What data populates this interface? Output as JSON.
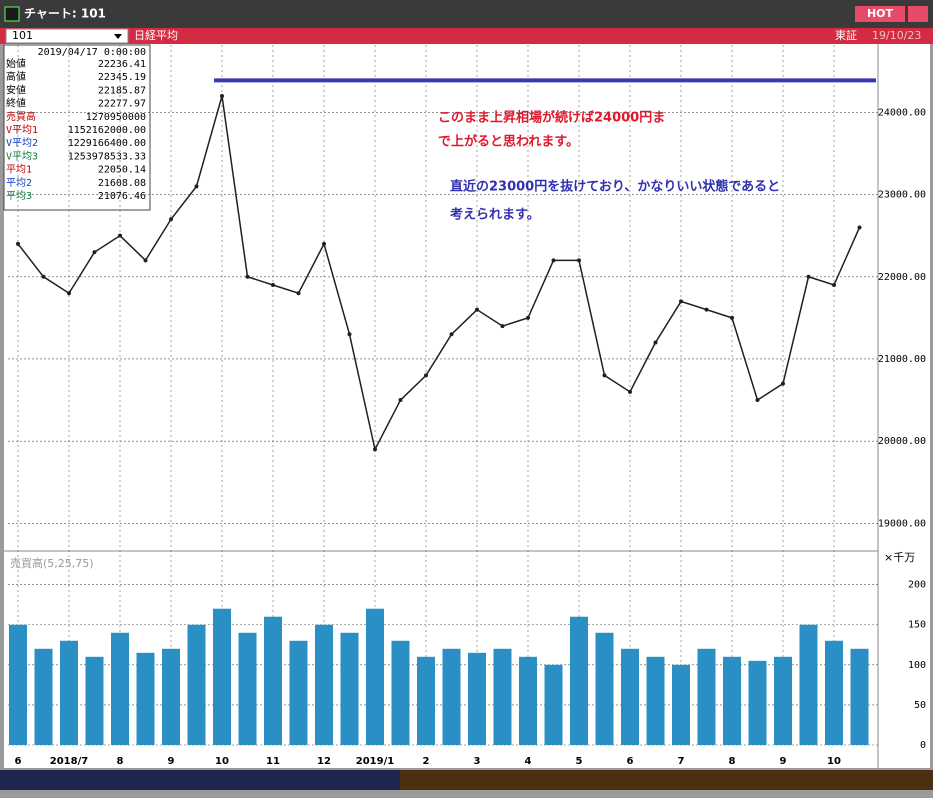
{
  "window": {
    "title": "チャート: 101",
    "hot": "HOT",
    "symbol": "101",
    "name": "日経平均",
    "market": "東証",
    "date": "19/10/23"
  },
  "info_box": {
    "datetime": "2019/04/17 0:00:00",
    "rows": [
      {
        "label": "始値",
        "value": "22236.41",
        "color": "#000000"
      },
      {
        "label": "高値",
        "value": "22345.19",
        "color": "#000000"
      },
      {
        "label": "安値",
        "value": "22185.87",
        "color": "#000000"
      },
      {
        "label": "終値",
        "value": "22277.97",
        "color": "#000000"
      },
      {
        "label": "売買高",
        "value": "1270950000",
        "color": "#c00000"
      },
      {
        "label": "V平均1",
        "value": "1152162000.00",
        "color": "#c00000"
      },
      {
        "label": "V平均2",
        "value": "1229166400.00",
        "color": "#1040c0"
      },
      {
        "label": "V平均3",
        "value": "1253978533.33",
        "color": "#108040"
      },
      {
        "label": "平均1",
        "value": "22050.14",
        "color": "#c00000"
      },
      {
        "label": "平均2",
        "value": "21608.08",
        "color": "#1040c0"
      },
      {
        "label": "平均3",
        "value": "21076.46",
        "color": "#108040"
      }
    ]
  },
  "annotations": [
    {
      "text": "このまま上昇相場が続けば24000円ま",
      "color": "#e0182c"
    },
    {
      "text": "で上がると思われます。",
      "color": "#e0182c"
    },
    {
      "text": "直近の23000円を抜けており、かなりいい状態であると",
      "color": "#3030b0"
    },
    {
      "text": "考えられます。",
      "color": "#3030b0"
    }
  ],
  "chart_data": [
    {
      "type": "line",
      "categories": [
        "6",
        null,
        "2018/7",
        null,
        "8",
        null,
        "9",
        null,
        "10",
        null,
        "11",
        null,
        "12",
        null,
        "2019/1",
        null,
        "2",
        null,
        "3",
        null,
        "4",
        null,
        "5",
        null,
        "6",
        null,
        "7",
        null,
        "8",
        null,
        "9",
        null,
        "10",
        null
      ],
      "series": [
        {
          "name": "終値",
          "color": "#202020",
          "values": [
            22400,
            22000,
            21800,
            22300,
            22500,
            22200,
            22700,
            23100,
            24200,
            22000,
            21900,
            21800,
            22400,
            21300,
            19900,
            20500,
            20800,
            21300,
            21600,
            21400,
            21500,
            22200,
            22200,
            20800,
            20600,
            21200,
            21700,
            21600,
            21500,
            20500,
            20700,
            22000,
            21900,
            22600
          ]
        }
      ],
      "hline": {
        "value": 24390,
        "color": "#3838b0"
      },
      "ylim": [
        18700,
        24820
      ],
      "yticks": [
        {
          "value": 19000,
          "label": "19000.00"
        },
        {
          "value": 20000,
          "label": "20000.00"
        },
        {
          "value": 21000,
          "label": "21000.00"
        },
        {
          "value": 22000,
          "label": "22000.00"
        },
        {
          "value": 23000,
          "label": "23000.00"
        },
        {
          "value": 24000,
          "label": "24000.00"
        }
      ],
      "grid": true
    },
    {
      "type": "bar",
      "title": "売買高(5,25,75)",
      "unit": "×千万",
      "values": [
        150,
        120,
        130,
        110,
        140,
        115,
        120,
        150,
        170,
        140,
        160,
        130,
        150,
        140,
        170,
        130,
        110,
        120,
        115,
        120,
        110,
        100,
        160,
        140,
        120,
        110,
        100,
        120,
        110,
        105,
        110,
        150,
        130,
        120
      ],
      "color": "#2a8fc4",
      "ylim": [
        0,
        237
      ],
      "yticks": [
        0,
        50,
        100,
        150,
        200
      ],
      "grid": true
    }
  ]
}
